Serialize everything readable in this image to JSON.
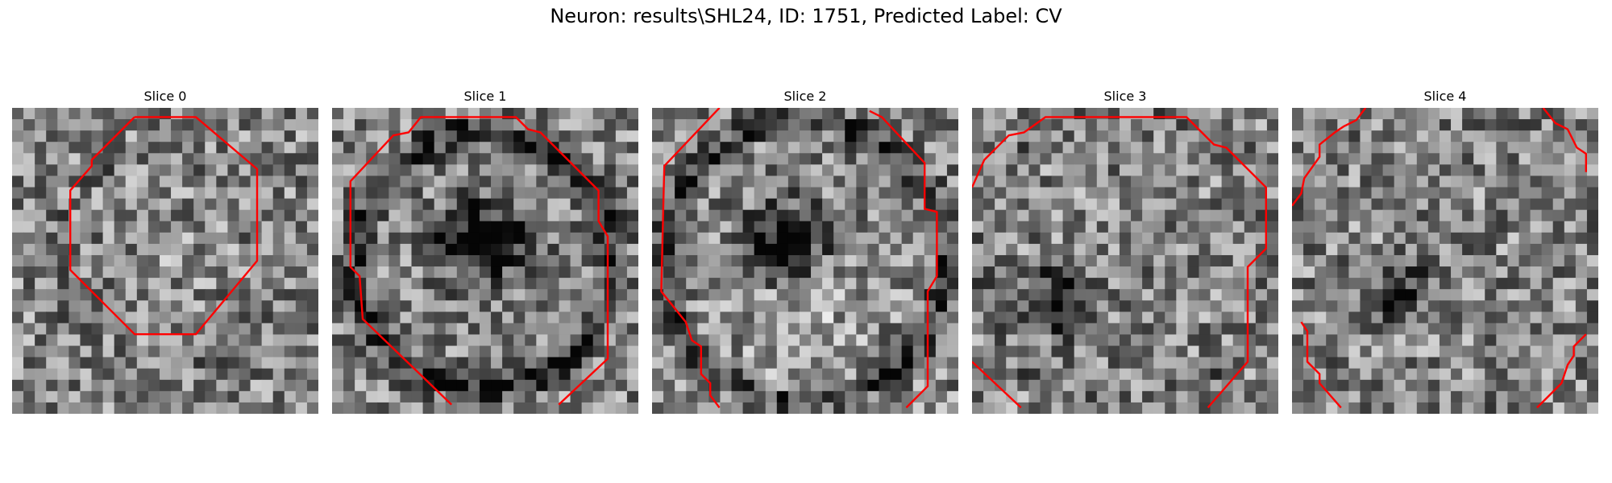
{
  "figure": {
    "title": "Neuron: results\\SHL24, ID: 1751, Predicted Label: CV"
  },
  "colors": {
    "contour": "#ff0000",
    "background": "#ffffff"
  },
  "grid": {
    "cells_per_side": 27,
    "colormap": "gray"
  },
  "slices": [
    {
      "title": "Slice 0",
      "seed": 17,
      "ring": {
        "r": 0.36,
        "strength": 0.05
      },
      "blobs": [
        [
          0.5,
          0.45,
          0.12,
          0.05
        ]
      ],
      "contour": [
        [
          [
            0.4,
            0.03
          ],
          [
            0.6,
            0.03
          ],
          [
            0.8,
            0.2
          ],
          [
            0.8,
            0.5
          ],
          [
            0.6,
            0.74
          ],
          [
            0.4,
            0.74
          ],
          [
            0.19,
            0.53
          ],
          [
            0.19,
            0.27
          ],
          [
            0.26,
            0.19
          ],
          [
            0.26,
            0.17
          ],
          [
            0.4,
            0.03
          ]
        ]
      ]
    },
    {
      "title": "Slice 1",
      "seed": 29,
      "ring": {
        "r": 0.42,
        "strength": 0.38
      },
      "blobs": [
        [
          0.5,
          0.43,
          0.14,
          -0.5
        ],
        [
          0.33,
          0.43,
          0.06,
          -0.3
        ]
      ],
      "contour": [
        [
          [
            0.39,
            0.97
          ],
          [
            0.1,
            0.69
          ],
          [
            0.09,
            0.55
          ],
          [
            0.06,
            0.52
          ],
          [
            0.06,
            0.24
          ],
          [
            0.2,
            0.09
          ],
          [
            0.25,
            0.08
          ],
          [
            0.29,
            0.03
          ],
          [
            0.6,
            0.03
          ],
          [
            0.64,
            0.07
          ],
          [
            0.68,
            0.08
          ],
          [
            0.87,
            0.27
          ],
          [
            0.87,
            0.37
          ],
          [
            0.9,
            0.42
          ],
          [
            0.9,
            0.82
          ],
          [
            0.74,
            0.97
          ]
        ]
      ]
    },
    {
      "title": "Slice 2",
      "seed": 43,
      "ring": {
        "r": 0.46,
        "strength": 0.3
      },
      "blobs": [
        [
          0.44,
          0.44,
          0.12,
          -0.55
        ],
        [
          0.5,
          0.72,
          0.22,
          0.12
        ]
      ],
      "contour": [
        [
          [
            0.22,
            0.0
          ],
          [
            0.04,
            0.19
          ],
          [
            0.03,
            0.6
          ],
          [
            0.11,
            0.7
          ],
          [
            0.13,
            0.76
          ],
          [
            0.16,
            0.78
          ],
          [
            0.16,
            0.87
          ],
          [
            0.19,
            0.9
          ],
          [
            0.19,
            0.94
          ],
          [
            0.22,
            0.98
          ]
        ],
        [
          [
            0.71,
            0.01
          ],
          [
            0.75,
            0.03
          ],
          [
            0.89,
            0.18
          ],
          [
            0.89,
            0.33
          ],
          [
            0.93,
            0.34
          ],
          [
            0.93,
            0.55
          ],
          [
            0.9,
            0.6
          ],
          [
            0.9,
            0.91
          ],
          [
            0.83,
            0.98
          ]
        ]
      ]
    },
    {
      "title": "Slice 3",
      "seed": 61,
      "ring": {
        "r": 0.48,
        "strength": 0.08
      },
      "blobs": [
        [
          0.29,
          0.63,
          0.1,
          -0.55
        ]
      ],
      "contour": [
        [
          [
            0.0,
            0.26
          ],
          [
            0.04,
            0.17
          ],
          [
            0.12,
            0.09
          ],
          [
            0.17,
            0.08
          ],
          [
            0.24,
            0.03
          ],
          [
            0.7,
            0.03
          ],
          [
            0.79,
            0.12
          ],
          [
            0.83,
            0.13
          ],
          [
            0.96,
            0.26
          ],
          [
            0.96,
            0.46
          ],
          [
            0.9,
            0.52
          ],
          [
            0.9,
            0.83
          ],
          [
            0.77,
            0.98
          ]
        ],
        [
          [
            0.0,
            0.83
          ],
          [
            0.16,
            0.98
          ]
        ]
      ]
    },
    {
      "title": "Slice 4",
      "seed": 83,
      "ring": {
        "r": 0.5,
        "strength": 0.02
      },
      "blobs": [
        [
          0.33,
          0.64,
          0.06,
          -0.55
        ],
        [
          0.41,
          0.56,
          0.1,
          -0.2
        ]
      ],
      "contour": [
        [
          [
            0.0,
            0.32
          ],
          [
            0.03,
            0.28
          ],
          [
            0.04,
            0.23
          ],
          [
            0.09,
            0.16
          ],
          [
            0.09,
            0.12
          ],
          [
            0.14,
            0.08
          ],
          [
            0.17,
            0.06
          ],
          [
            0.21,
            0.04
          ],
          [
            0.24,
            0.0
          ]
        ],
        [
          [
            0.82,
            0.0
          ],
          [
            0.86,
            0.05
          ],
          [
            0.9,
            0.07
          ],
          [
            0.93,
            0.13
          ],
          [
            0.96,
            0.15
          ],
          [
            0.96,
            0.21
          ]
        ],
        [
          [
            0.03,
            0.7
          ],
          [
            0.05,
            0.73
          ],
          [
            0.05,
            0.83
          ],
          [
            0.09,
            0.87
          ],
          [
            0.09,
            0.9
          ],
          [
            0.16,
            0.98
          ]
        ],
        [
          [
            0.8,
            0.98
          ],
          [
            0.88,
            0.9
          ],
          [
            0.9,
            0.84
          ],
          [
            0.92,
            0.81
          ],
          [
            0.92,
            0.78
          ],
          [
            0.96,
            0.74
          ]
        ]
      ]
    }
  ]
}
